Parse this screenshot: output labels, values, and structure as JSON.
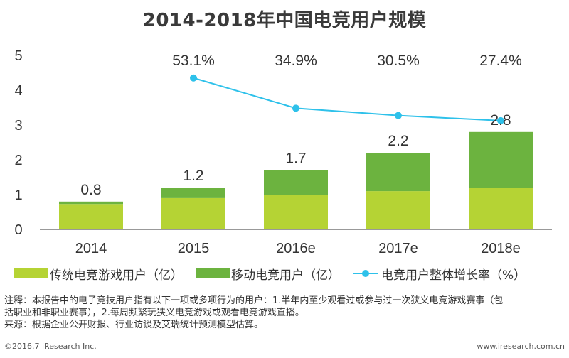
{
  "title": "2014-2018年中国电竞用户规模",
  "chart_data": {
    "type": "bar",
    "stacked": true,
    "categories": [
      "2014",
      "2015",
      "2016e",
      "2017e",
      "2018e"
    ],
    "series": [
      {
        "name": "传统电竞游戏用户（亿）",
        "color": "#b5d334",
        "values": [
          0.73,
          0.9,
          1.0,
          1.1,
          1.2
        ]
      },
      {
        "name": "移动电竞用户（亿）",
        "color": "#6cb33f",
        "values": [
          0.07,
          0.3,
          0.7,
          1.1,
          1.6
        ]
      }
    ],
    "totals": [
      0.8,
      1.2,
      1.7,
      2.2,
      2.8
    ],
    "total_labels": [
      "0.8",
      "1.2",
      "1.7",
      "2.2",
      "2.8"
    ],
    "line_series": {
      "name": "电竞用户整体增长率（%）",
      "color": "#2ec1ea",
      "categories": [
        "2015",
        "2016e",
        "2017e",
        "2018e"
      ],
      "values": [
        53.1,
        34.9,
        30.5,
        27.4
      ],
      "labels": [
        "53.1%",
        "34.9%",
        "30.5%",
        "27.4%"
      ]
    },
    "yticks": [
      "0",
      "1",
      "2",
      "3",
      "4",
      "5"
    ],
    "ylim": [
      0,
      5
    ]
  },
  "legend": {
    "item1": "传统电竞游戏用户（亿）",
    "item2": "移动电竞用户（亿）",
    "item3": "电竞用户整体增长率（%）"
  },
  "notes": {
    "line1": "注释：本报告中的电子竞技用户指有以下一项或多项行为的用户：1.半年内至少观看过或参与过一次狭义电竞游戏赛事（包",
    "line2": "括职业和非职业赛事），2.每周频繁玩狭义电竞游戏或观看电竞游戏直播。",
    "line3": "来源：根据企业公开财报、行业访谈及艾瑞统计预测模型估算。"
  },
  "footer": {
    "left": "©2016.7 iResearch Inc.",
    "right": "www.iresearch.com.cn"
  }
}
